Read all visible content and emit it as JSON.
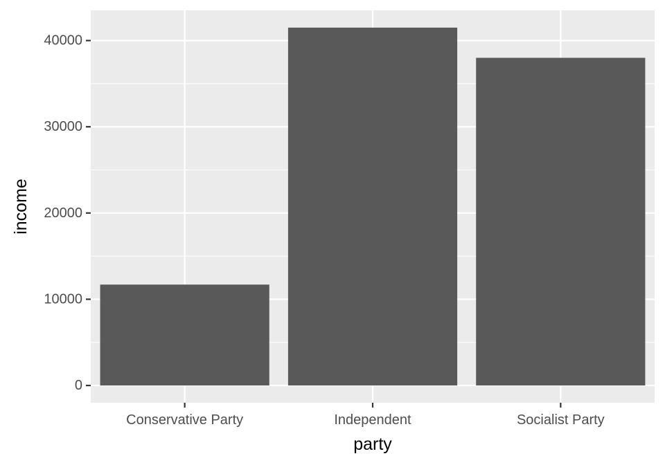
{
  "chart_data": {
    "type": "bar",
    "categories": [
      "Conservative Party",
      "Independent",
      "Socialist Party"
    ],
    "values": [
      11700,
      41500,
      38000
    ],
    "xlabel": "party",
    "ylabel": "income",
    "ylim": [
      -2000,
      43500
    ],
    "yticks": [
      0,
      10000,
      20000,
      30000,
      40000
    ],
    "ytick_labels": [
      "0",
      "10000",
      "20000",
      "30000",
      "40000"
    ],
    "grid": true,
    "legend": "none",
    "colors": {
      "bar": "#595959",
      "panel": "#ebebeb",
      "grid": "#ffffff",
      "tick": "#333333"
    }
  }
}
